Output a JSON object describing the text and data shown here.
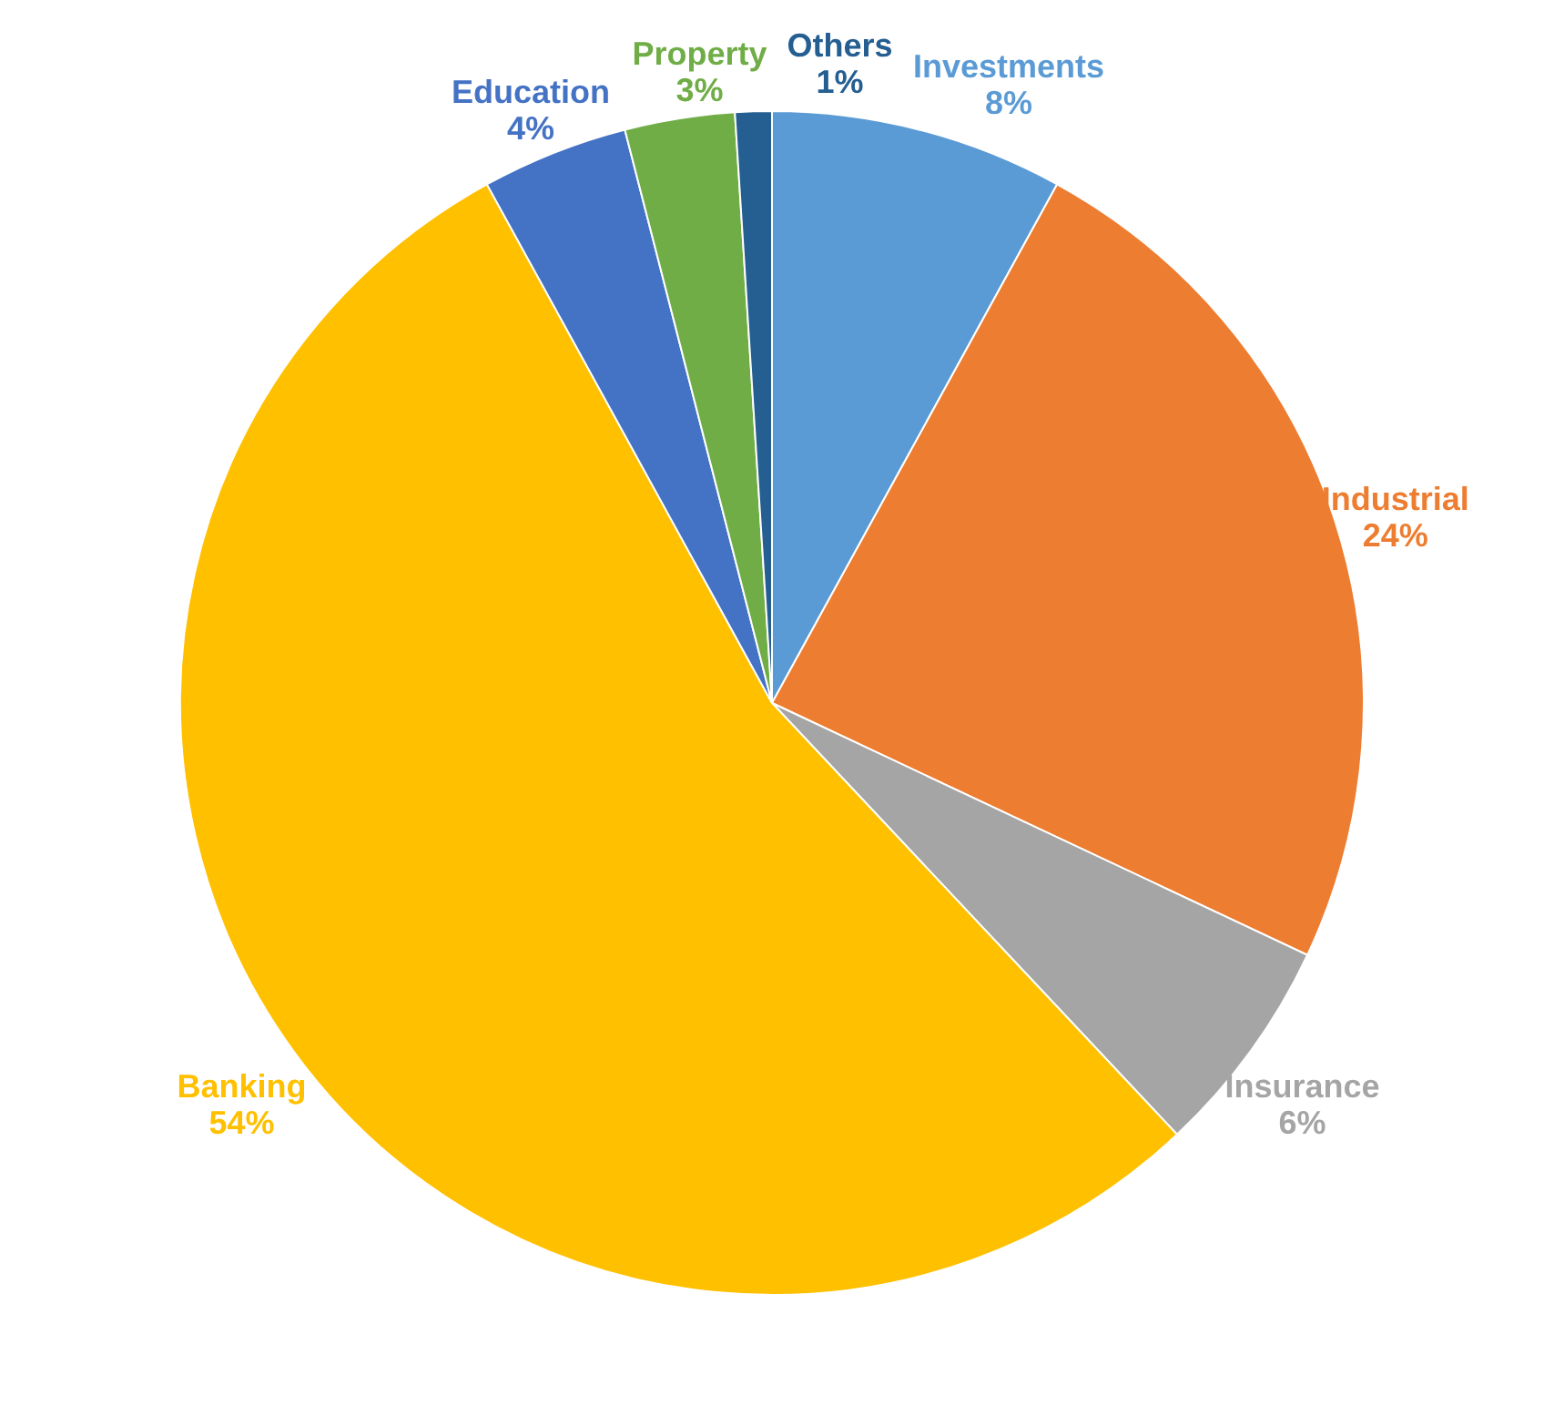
{
  "chart_data": {
    "type": "pie",
    "categories": [
      "Investments",
      "Industrial",
      "Insurance",
      "Banking",
      "Education",
      "Property",
      "Others"
    ],
    "values": [
      8,
      24,
      6,
      54,
      4,
      3,
      1
    ],
    "value_labels": [
      "8%",
      "24%",
      "6%",
      "54%",
      "4%",
      "3%",
      "1%"
    ],
    "colors": [
      "#5b9bd5",
      "#ed7d31",
      "#a5a5a5",
      "#ffc000",
      "#4472c4",
      "#70ad47",
      "#255e91"
    ],
    "legend": false
  }
}
